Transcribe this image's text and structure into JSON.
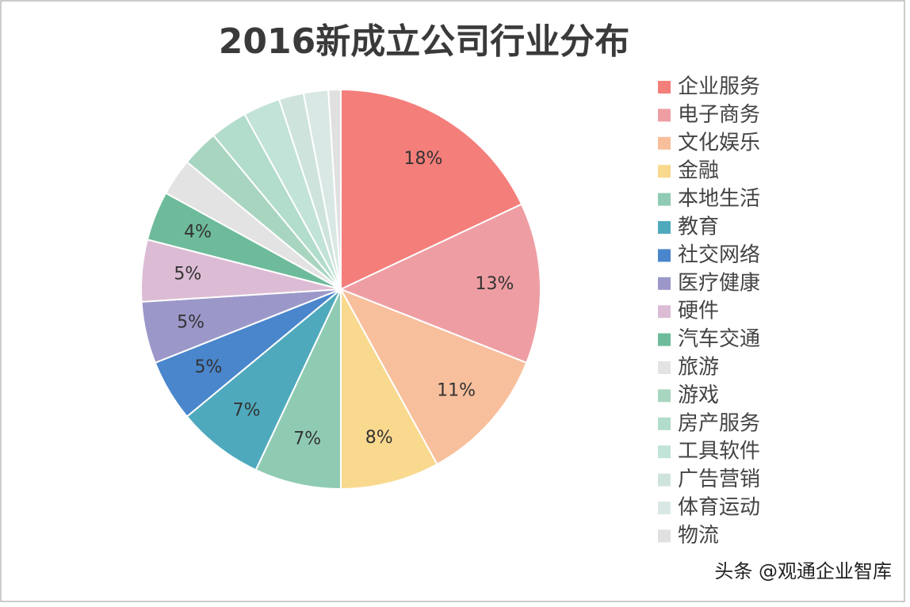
{
  "chart_data": {
    "type": "pie",
    "title": "2016新成立公司行业分布",
    "categories": [
      "企业服务",
      "电子商务",
      "文化娱乐",
      "金融",
      "本地生活",
      "教育",
      "社交网络",
      "医疗健康",
      "硬件",
      "汽车交通",
      "旅游",
      "游戏",
      "房产服务",
      "工具软件",
      "广告营销",
      "体育运动",
      "物流"
    ],
    "values": [
      18,
      13,
      11,
      8,
      7,
      7,
      5,
      5,
      5,
      4,
      3,
      3,
      3,
      3,
      2,
      2,
      1
    ],
    "value_labels": [
      "18%",
      "13%",
      "11%",
      "8%",
      "7%",
      "7%",
      "5%",
      "5%",
      "5%",
      "4%",
      null,
      null,
      null,
      null,
      null,
      null,
      null
    ],
    "colors": [
      "#f47e7a",
      "#ee9ea3",
      "#f8bf9c",
      "#f9d98e",
      "#8fcbb3",
      "#4fa9bd",
      "#4a86cc",
      "#9b98c9",
      "#dcbcd4",
      "#6dbb9b",
      "#e3e3e3",
      "#a8d5c0",
      "#b2dccb",
      "#c2e3d7",
      "#cfe3dd",
      "#d9e8e4",
      "#e0e0e0"
    ],
    "legend": "right",
    "watermark": "头条 @观通企业智库"
  }
}
